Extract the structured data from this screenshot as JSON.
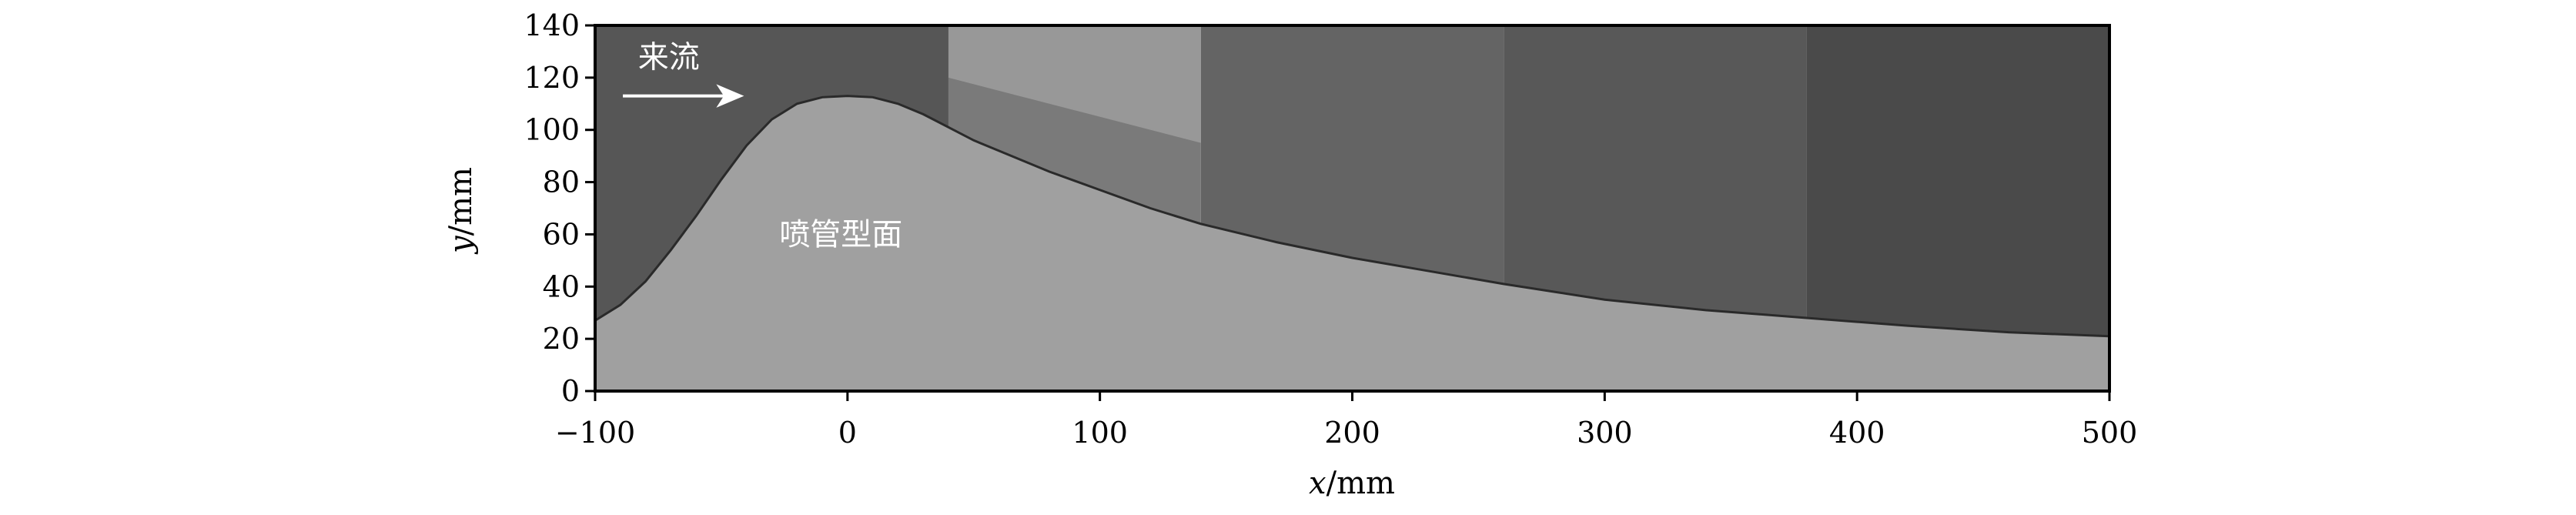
{
  "chart_data": {
    "type": "area",
    "xlabel_var": "x",
    "xlabel_unit": "/mm",
    "ylabel_var": "y",
    "ylabel_unit": "/mm",
    "xlim": [
      -100,
      500
    ],
    "ylim": [
      0,
      140
    ],
    "xticks": [
      -100,
      0,
      100,
      200,
      300,
      400,
      500
    ],
    "xtick_labels": [
      "−100",
      "0",
      "100",
      "200",
      "300",
      "400",
      "500"
    ],
    "yticks": [
      0,
      20,
      40,
      60,
      80,
      100,
      120,
      140
    ],
    "grid": false,
    "background_panels": [
      {
        "x": [
          -100,
          40
        ],
        "color": "#565656"
      },
      {
        "x": [
          40,
          140
        ],
        "color": "#7a7a7a"
      },
      {
        "x": [
          140,
          260
        ],
        "color": "#646464"
      },
      {
        "x": [
          260,
          380
        ],
        "color": "#585858"
      },
      {
        "x": [
          380,
          500
        ],
        "color": "#4a4a4a"
      }
    ],
    "profile_color": "#a0a0a0",
    "profile": {
      "x": [
        -100,
        -90,
        -80,
        -70,
        -60,
        -50,
        -40,
        -30,
        -20,
        -10,
        0,
        10,
        20,
        30,
        40,
        50,
        60,
        80,
        100,
        120,
        140,
        170,
        200,
        230,
        260,
        300,
        340,
        380,
        420,
        460,
        500
      ],
      "y": [
        27,
        33,
        42,
        54,
        67,
        81,
        94,
        104,
        110,
        112.5,
        113,
        112.5,
        110,
        106,
        101,
        96,
        92,
        84,
        77,
        70,
        64,
        57,
        51,
        46,
        41,
        35,
        31,
        28,
        25,
        22.5,
        21
      ]
    },
    "annotations": {
      "flow_label": "来流",
      "profile_label": "喷管型面"
    }
  }
}
